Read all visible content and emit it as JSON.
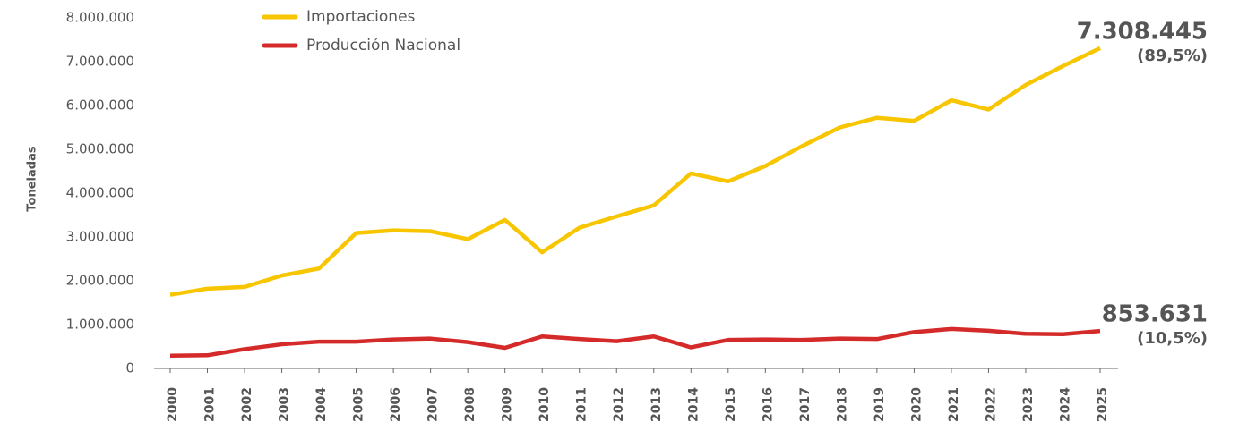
{
  "chart_data": {
    "type": "line",
    "y_label": "Toneladas",
    "categories": [
      "2000",
      "2001",
      "2002",
      "2003",
      "2004",
      "2005",
      "2006",
      "2007",
      "2008",
      "2009",
      "2010",
      "2011",
      "2012",
      "2013",
      "2014",
      "2015",
      "2016",
      "2017",
      "2018",
      "2019",
      "2020",
      "2021",
      "2022",
      "2023",
      "2024",
      "2025"
    ],
    "series": [
      {
        "name": "Importaciones",
        "color": "#f7c600",
        "values": [
          1680000,
          1820000,
          1860000,
          2120000,
          2280000,
          3090000,
          3150000,
          3130000,
          2950000,
          3390000,
          2650000,
          3210000,
          3470000,
          3720000,
          4450000,
          4270000,
          4620000,
          5080000,
          5500000,
          5720000,
          5650000,
          6120000,
          5910000,
          6470000,
          6900000,
          7308445
        ],
        "end_label": "7.308.445",
        "share_label": "(89,5%)"
      },
      {
        "name": "Producción Nacional",
        "color": "#d42a2a",
        "values": [
          290000,
          300000,
          440000,
          550000,
          610000,
          610000,
          660000,
          680000,
          600000,
          470000,
          730000,
          670000,
          620000,
          730000,
          480000,
          650000,
          660000,
          650000,
          680000,
          670000,
          830000,
          900000,
          860000,
          790000,
          780000,
          853631
        ],
        "end_label": "853.631",
        "share_label": "(10,5%)"
      }
    ],
    "ylim": [
      0,
      8000000
    ],
    "yticks": [
      0,
      {
        "value": 1000000,
        "label": "1.000.000"
      },
      {
        "value": 2000000,
        "label": "2.000.000"
      },
      {
        "value": 3000000,
        "label": "3.000.000"
      },
      {
        "value": 4000000,
        "label": "4.000.000"
      },
      {
        "value": 5000000,
        "label": "5.000.000"
      },
      {
        "value": 6000000,
        "label": "6.000.000"
      },
      {
        "value": 7000000,
        "label": "7.000.000"
      },
      {
        "value": 8000000,
        "label": "8.000.000"
      }
    ],
    "grid": false,
    "legend": "top-left"
  }
}
